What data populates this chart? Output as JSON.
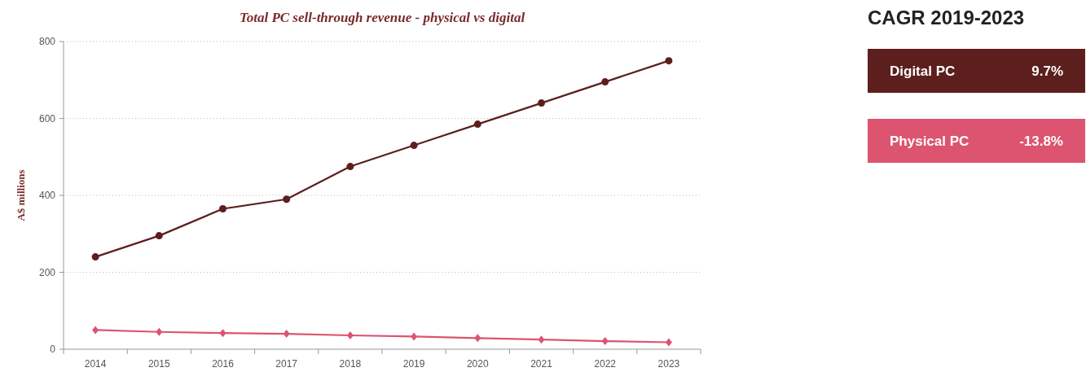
{
  "chart_data": [
    {
      "type": "line",
      "title": "Total PC sell-through revenue - physical vs digital",
      "ylabel": "A$ millions",
      "categories": [
        "2014",
        "2015",
        "2016",
        "2017",
        "2018",
        "2019",
        "2020",
        "2021",
        "2022",
        "2023"
      ],
      "ylim": [
        0,
        800
      ],
      "yticks": [
        0,
        200,
        400,
        600,
        800
      ],
      "grid": "y",
      "series": [
        {
          "color": "#5c1f1e",
          "marker": "circle",
          "values": [
            240,
            295,
            365,
            390,
            475,
            530,
            585,
            640,
            695,
            750
          ]
        },
        {
          "color": "#dc5470",
          "marker": "diamond",
          "values": [
            50,
            45,
            42,
            40,
            36,
            33,
            29,
            25,
            21,
            18
          ]
        }
      ]
    },
    {
      "type": "other",
      "title": "CAGR 2019-2023",
      "categories": [
        "Digital PC",
        "Physical PC"
      ],
      "value_labels": [
        "9.7%",
        "-13.8%"
      ],
      "colors": [
        "#5c1f1e",
        "#dc5470"
      ]
    }
  ]
}
